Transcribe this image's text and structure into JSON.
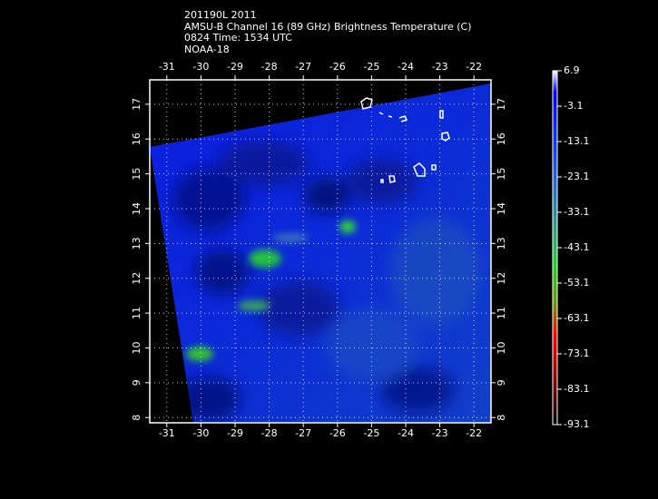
{
  "header": {
    "lines": [
      "201190L 2011",
      "AMSU-B Channel 16 (89 GHz) Brightness Temperature (C)",
      "0824 Time: 1534 UTC",
      "NOAA-18"
    ]
  },
  "map": {
    "xlim": [
      -31.5,
      -21.5
    ],
    "ylim": [
      7.85,
      17.7
    ],
    "xticks": [
      -31,
      -30,
      -29,
      -28,
      -27,
      -26,
      -25,
      -24,
      -23,
      -22
    ],
    "yticks": [
      8,
      9,
      10,
      11,
      12,
      13,
      14,
      15,
      16,
      17
    ],
    "grid": true
  },
  "colorbar": {
    "range": [
      -93.1,
      6.9
    ],
    "ticks": [
      6.9,
      -3.1,
      -13.1,
      -23.1,
      -33.1,
      -43.1,
      -53.1,
      -63.1,
      -73.1,
      -83.1,
      -93.1
    ]
  }
}
